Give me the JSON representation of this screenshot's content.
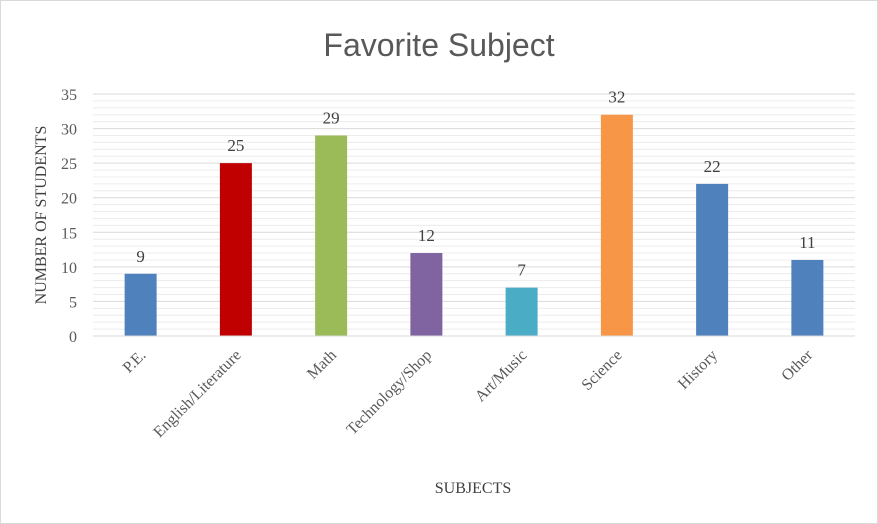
{
  "chart_data": {
    "type": "bar",
    "title": "Favorite Subject",
    "xlabel": "SUBJECTS",
    "ylabel": "NUMBER OF STUDENTS",
    "categories": [
      "P.E.",
      "English/Literature",
      "Math",
      "Technology/Shop",
      "Art/Music",
      "Science",
      "History",
      "Other"
    ],
    "values": [
      9,
      25,
      29,
      12,
      7,
      32,
      22,
      11
    ],
    "colors": [
      "#4f81bd",
      "#c00000",
      "#9bbb59",
      "#8064a2",
      "#4bacc6",
      "#f79646",
      "#4f81bd",
      "#4f81bd"
    ],
    "ylim": [
      0,
      35
    ],
    "yticks": [
      0,
      5,
      10,
      15,
      20,
      25,
      30,
      35
    ],
    "grid": true,
    "legend": "none"
  }
}
